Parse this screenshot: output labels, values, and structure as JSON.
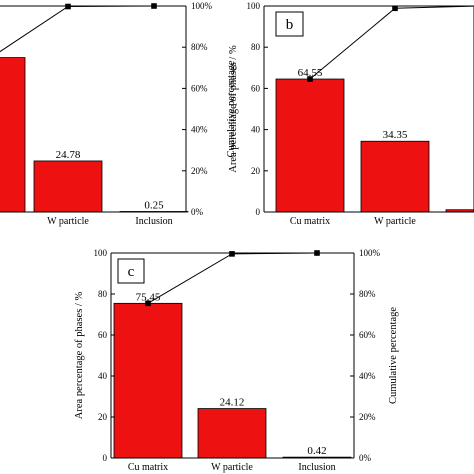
{
  "chart_data": [
    {
      "type": "bar",
      "panel": "a",
      "categories": [
        "Cu matrix",
        "W particle",
        "Inclusion"
      ],
      "values": [
        74.97,
        24.78,
        0.25
      ],
      "value_labels": [
        "",
        "24.78",
        "0.25"
      ],
      "category_labels": [
        "ix",
        "W particle",
        "Inclusion"
      ],
      "series": [
        {
          "values": [
            74.97,
            24.78,
            0.25
          ]
        },
        {
          "values": [
            74.97,
            99.75,
            100
          ]
        }
      ],
      "ylabel": "",
      "y2label": "Cumulative percentage",
      "ylim": [
        0,
        100
      ],
      "y2ticks": [
        "0%",
        "20%",
        "40%",
        "60%",
        "80%",
        "100%"
      ],
      "bar_color": "#ee1111",
      "line_color": "#000000"
    },
    {
      "type": "bar",
      "panel": "b",
      "categories": [
        "Cu matrix",
        "W particle",
        "Inclusion"
      ],
      "values": [
        64.55,
        34.35,
        1.1
      ],
      "value_labels": [
        "64.55",
        "34.35",
        ""
      ],
      "category_labels": [
        "Cu matrix",
        "W particle",
        "I"
      ],
      "series": [
        {
          "values": [
            64.55,
            34.35,
            1.1
          ]
        },
        {
          "values": [
            64.55,
            98.9,
            100
          ]
        }
      ],
      "ylabel": "Area percentage of  phases  / %",
      "ylim": [
        0,
        100
      ],
      "yticks": [
        "0",
        "20",
        "40",
        "60",
        "80",
        "100"
      ],
      "bar_color": "#ee1111",
      "line_color": "#000000"
    },
    {
      "type": "bar",
      "panel": "c",
      "categories": [
        "Cu matrix",
        "W particle",
        "Inclusion"
      ],
      "values": [
        75.45,
        24.12,
        0.42
      ],
      "value_labels": [
        "75.45",
        "24.12",
        "0.42"
      ],
      "category_labels": [
        "Cu matrix",
        "W particle",
        "Inclusion"
      ],
      "series": [
        {
          "values": [
            75.45,
            24.12,
            0.42
          ]
        },
        {
          "values": [
            75.45,
            99.57,
            100
          ]
        }
      ],
      "ylabel": "Area percentage of  phases  / %",
      "y2label": "Cumulative percentage",
      "ylim": [
        0,
        100
      ],
      "yticks": [
        "0",
        "20",
        "40",
        "60",
        "80",
        "100"
      ],
      "y2ticks": [
        "0%",
        "20%",
        "40%",
        "60%",
        "80%",
        "100%"
      ],
      "bar_color": "#ee1111",
      "line_color": "#000000"
    }
  ]
}
